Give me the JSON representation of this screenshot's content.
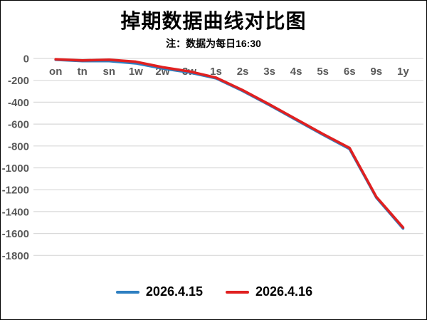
{
  "title": "掉期数据曲线对比图",
  "subtitle": "注：数据为每日16:30",
  "colors": {
    "series_blue": "#2e7fc1",
    "series_red": "#e02020",
    "gridline": "#d9d9d9",
    "axis_label": "#595959",
    "text": "#000000"
  },
  "chart_data": {
    "type": "line",
    "categories": [
      "on",
      "tn",
      "sn",
      "1w",
      "2w",
      "3w",
      "1s",
      "2s",
      "3s",
      "4s",
      "5s",
      "6s",
      "9s",
      "1y"
    ],
    "series": [
      {
        "name": "2026.4.15",
        "color": "#2e7fc1",
        "values": [
          -12,
          -24,
          -24,
          -45,
          -92,
          -128,
          -182,
          -297,
          -427,
          -562,
          -697,
          -828,
          -1272,
          -1555
        ]
      },
      {
        "name": "2026.4.16",
        "color": "#e02020",
        "values": [
          -8,
          -18,
          -12,
          -30,
          -80,
          -118,
          -175,
          -290,
          -420,
          -555,
          -690,
          -818,
          -1265,
          -1545
        ]
      }
    ],
    "ylim": [
      -1800,
      0
    ],
    "yticks": [
      0,
      -200,
      -400,
      -600,
      -800,
      -1000,
      -1200,
      -1400,
      -1600,
      -1800
    ],
    "grid": true,
    "legend_position": "bottom",
    "xlabel": "",
    "ylabel": ""
  }
}
